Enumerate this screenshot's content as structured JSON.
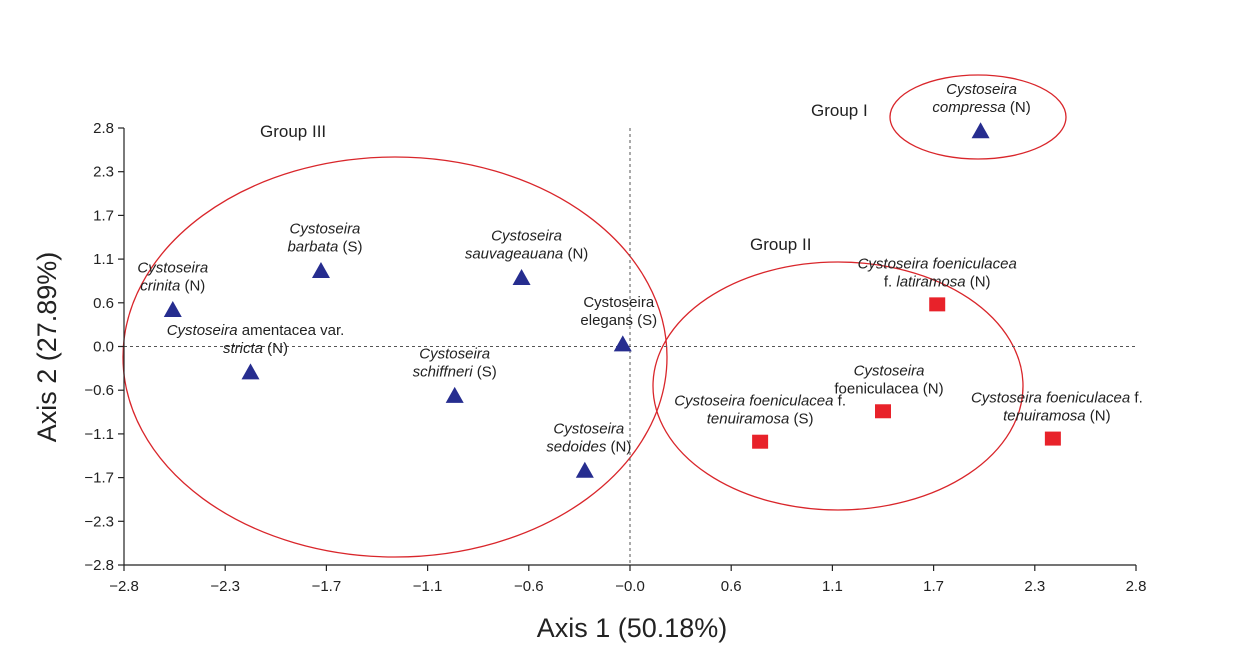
{
  "chart_data": {
    "type": "scatter",
    "title": "",
    "xlabel": "Axis 1 (50.18%)",
    "ylabel": "Axis 2 (27.89%)",
    "xlim": [
      -2.8,
      2.8
    ],
    "ylim": [
      -2.8,
      2.8
    ],
    "xticks": [
      "−2.8",
      "−2.3",
      "−1.7",
      "−1.1",
      "−0.6",
      "−0.0",
      "0.6",
      "1.1",
      "1.7",
      "2.3",
      "2.8"
    ],
    "yticks": [
      "2.8",
      "2.3",
      "1.7",
      "1.1",
      "0.6",
      "0.0",
      "−0.6",
      "−1.1",
      "−1.7",
      "−2.3",
      "−2.8"
    ],
    "grid": false,
    "reference_lines": "dashed lines at x = 0 and y = 0",
    "groups": [
      {
        "name": "Group I",
        "color": "#d9262b"
      },
      {
        "name": "Group II",
        "color": "#d9262b"
      },
      {
        "name": "Group III",
        "color": "#d9262b"
      }
    ],
    "series": [
      {
        "name": "triangles",
        "marker": "triangle",
        "color": "#262d8f",
        "points": [
          {
            "x": -2.53,
            "y": 0.46,
            "label": [
              [
                {
                  "t": "Cystoseira",
                  "i": true
                }
              ],
              [
                {
                  "t": "crinita",
                  "i": true
                },
                {
                  "t": " (N)",
                  "i": false
                }
              ]
            ]
          },
          {
            "x": -1.71,
            "y": 0.96,
            "label": [
              [
                {
                  "t": "Cystoseira",
                  "i": true
                }
              ],
              [
                {
                  "t": "barbata",
                  "i": true
                },
                {
                  "t": " (S)",
                  "i": false
                }
              ]
            ]
          },
          {
            "x": -2.1,
            "y": -0.34,
            "label": [
              [
                {
                  "t": "Cystoseira",
                  "i": true
                },
                {
                  "t": " amentacea var.",
                  "i": false
                }
              ],
              [
                {
                  "t": "stricta",
                  "i": true
                },
                {
                  "t": " (N)",
                  "i": false
                }
              ]
            ]
          },
          {
            "x": -0.6,
            "y": 0.87,
            "label": [
              [
                {
                  "t": "Cystoseira",
                  "i": true
                }
              ],
              [
                {
                  "t": "sauvageauana",
                  "i": true
                },
                {
                  "t": " (N)",
                  "i": false
                }
              ]
            ]
          },
          {
            "x": -0.04,
            "y": 0.02,
            "label": [
              [
                {
                  "t": "Cystoseira",
                  "i": false
                }
              ],
              [
                {
                  "t": "elegans (S)",
                  "i": false
                }
              ]
            ]
          },
          {
            "x": -0.97,
            "y": -0.64,
            "label": [
              [
                {
                  "t": "Cystoseira",
                  "i": true
                }
              ],
              [
                {
                  "t": "schiffneri",
                  "i": true
                },
                {
                  "t": " (S)",
                  "i": false
                }
              ]
            ]
          },
          {
            "x": -0.25,
            "y": -1.6,
            "label": [
              [
                {
                  "t": "Cystoseira",
                  "i": true
                }
              ],
              [
                {
                  "t": "sedoides",
                  "i": true
                },
                {
                  "t": " (N)",
                  "i": false
                }
              ]
            ]
          },
          {
            "x": 1.94,
            "y": 2.75,
            "label": [
              [
                {
                  "t": "Cystoseira",
                  "i": true
                }
              ],
              [
                {
                  "t": "compressa",
                  "i": true
                },
                {
                  "t": " (N)",
                  "i": false
                }
              ]
            ]
          }
        ]
      },
      {
        "name": "squares",
        "marker": "square",
        "color": "#e8222a",
        "points": [
          {
            "x": 1.7,
            "y": 0.54,
            "label": [
              [
                {
                  "t": "Cystoseira foeniculacea",
                  "i": true
                }
              ],
              [
                {
                  "t": "f. ",
                  "i": false
                },
                {
                  "t": "latiramosa",
                  "i": true
                },
                {
                  "t": " (N)",
                  "i": false
                }
              ]
            ]
          },
          {
            "x": 1.4,
            "y": -0.83,
            "label": [
              [
                {
                  "t": "Cystoseira",
                  "i": true
                }
              ],
              [
                {
                  "t": "foeniculacea",
                  "i": false
                },
                {
                  "t": " (N)",
                  "i": false
                }
              ]
            ]
          },
          {
            "x": 0.72,
            "y": -1.22,
            "label": [
              [
                {
                  "t": "Cystoseira foeniculacea",
                  "i": true
                },
                {
                  "t": " f.",
                  "i": false
                }
              ],
              [
                {
                  "t": "tenuiramosa",
                  "i": true
                },
                {
                  "t": " (S)",
                  "i": false
                }
              ]
            ]
          },
          {
            "x": 2.34,
            "y": -1.18,
            "label": [
              [
                {
                  "t": "Cystoseira foeniculacea",
                  "i": true
                },
                {
                  "t": " f.",
                  "i": false
                }
              ],
              [
                {
                  "t": "tenuiramosa",
                  "i": true
                },
                {
                  "t": " (N)",
                  "i": false
                }
              ]
            ]
          }
        ]
      }
    ]
  }
}
